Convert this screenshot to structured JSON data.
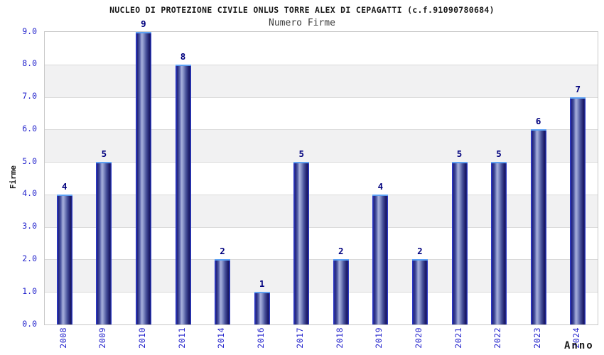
{
  "chart_data": {
    "type": "bar",
    "title": "NUCLEO DI PROTEZIONE CIVILE ONLUS TORRE ALEX DI CEPAGATTI (c.f.91090780684)",
    "subtitle": "Numero Firme",
    "xlabel": "Anno",
    "ylabel": "Firme",
    "categories": [
      "2008",
      "2009",
      "2010",
      "2011",
      "2014",
      "2016",
      "2017",
      "2018",
      "2019",
      "2020",
      "2021",
      "2022",
      "2023",
      "2024"
    ],
    "values": [
      4,
      5,
      9,
      8,
      2,
      1,
      5,
      2,
      4,
      2,
      5,
      5,
      6,
      7
    ],
    "ylim": [
      0,
      9
    ],
    "y_tick_step": 1,
    "y_tick_labels": [
      "0.0",
      "1.0",
      "2.0",
      "3.0",
      "4.0",
      "5.0",
      "6.0",
      "7.0",
      "8.0",
      "9.0"
    ],
    "grid": "horizontal alternating bands, gray on 1-2/3-4/5-6/7-8",
    "legend": "none",
    "bar_value_labels_shown": true
  },
  "colors": {
    "background": "#ffffff",
    "tick_label_blue": "#2323cc",
    "value_label_navy": "#00007e",
    "title_color": "#1a1a1a",
    "subtitle_color": "#3c3c3c",
    "axis_label_color": "#1a1a1a",
    "bar_edge_blue": "#2c39c3",
    "bar_light_center": "#a9b1dd",
    "bar_top_highlight": "#5da0f2",
    "band_gray": "#f1f1f2",
    "gridline": "#dadada",
    "plot_border": "#c8c8c8"
  }
}
